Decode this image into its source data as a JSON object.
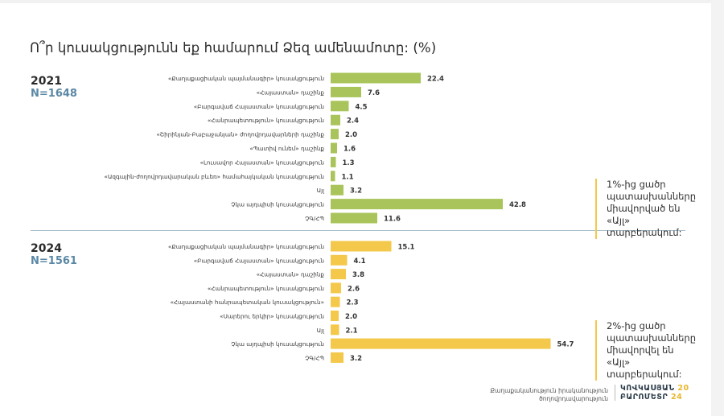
{
  "title": "Ո՞ր կուսակցությունն եք համարում Ձեզ ամենամոտը: (%)",
  "footer": {
    "org_line1": "Քաղաքականություն իրականություն",
    "org_line2": "ծողովրդավարություն",
    "logo_line1": "ԿՈՎԿԱՍՅԱՆ",
    "logo_line2": "ԲԱՐՈՄԵՏՐ",
    "logo_year_top": "20",
    "logo_year_bottom": "24"
  },
  "colors": {
    "green": "#a9c45a",
    "yellow": "#f4c84a",
    "accent_blue": "#5b88a6"
  },
  "chart_data": [
    {
      "type": "bar",
      "orientation": "horizontal",
      "year": "2021",
      "n_label": "N=1648",
      "categories": [
        "«Քաղաքացիական պայմանագիր» կուսակցություն",
        "«Հայաստան» դաշինք",
        "«Բարգավաճ Հայաստան» կուսակցություն",
        "«Հանրապետություն» կուսակցություն",
        "«Շիրինյան-Բաբաջանյան» ժողովրդավարների դաշինք",
        "«Պատիվ ունեմ» դաշինք",
        "«Լուսավոր Հայաստան» կուսակցություն",
        "«Ազգային-ժողովրդավարական բևեռ» համահայկական կուսակցություն",
        "Այլ",
        "Չկա այդպիսի կուսակցություն",
        "ՉԳ/ՀՊ"
      ],
      "values": [
        22.4,
        7.6,
        4.5,
        2.4,
        2.0,
        1.6,
        1.3,
        1.1,
        3.2,
        42.8,
        11.6
      ],
      "value_labels": [
        "22.4",
        "7.6",
        "4.5",
        "2.4",
        "2.0",
        "1.6",
        "1.3",
        "1.1",
        "3.2",
        "42.8",
        "11.6"
      ],
      "color": "#a9c45a",
      "note": "1%-ից ցածր պատասխանները միավորված են «Այլ» տարբերակում:"
    },
    {
      "type": "bar",
      "orientation": "horizontal",
      "year": "2024",
      "n_label": "N=1561",
      "categories": [
        "«Քաղաքացիական պայմանագիր» կուսակցություն",
        "«Բարգավաճ Հայաստան» կուսակցություն",
        "«Հայաստան» դաշինք",
        "«Հանրապետություն» կուսակցություն",
        "«Հայաստանի հանրապետական կուսակցություն»",
        "«Սարերու երկիր» կուսակցություն",
        "Այլ",
        "Չկա այդպիսի կուսակցություն",
        "ՉԳ/ՀՊ"
      ],
      "values": [
        15.1,
        4.1,
        3.8,
        2.6,
        2.3,
        2.0,
        2.1,
        54.7,
        3.2
      ],
      "value_labels": [
        "15.1",
        "4.1",
        "3.8",
        "2.6",
        "2.3",
        "2.0",
        "2.1",
        "54.7",
        "3.2"
      ],
      "color": "#f4c84a",
      "note": "2%-ից ցածր պատասխանները միավորվել են «Այլ» տարբերակում:"
    }
  ]
}
